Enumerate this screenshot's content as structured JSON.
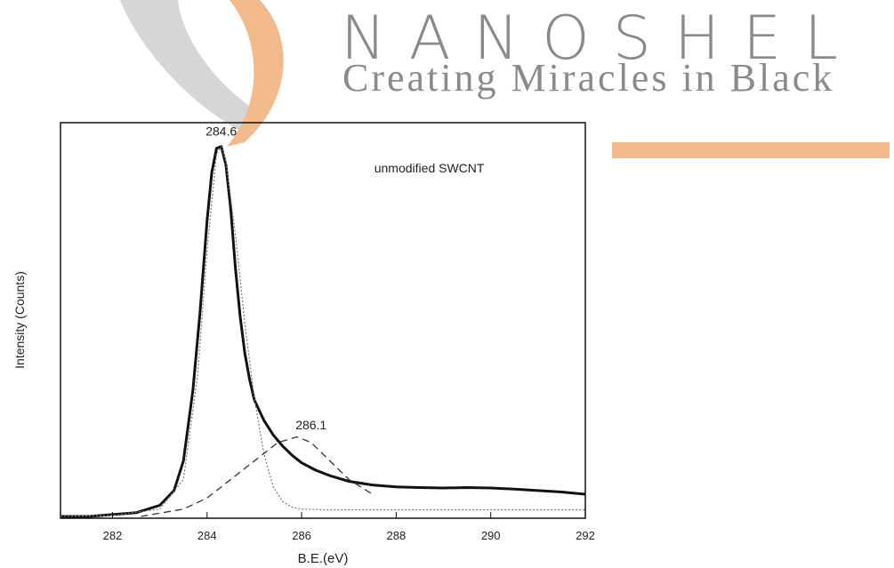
{
  "logo": {
    "name": "NANOSHEL",
    "tagline": "Creating Miracles in Black",
    "colors": {
      "swoosh_orange": "#f2b98a",
      "swoosh_gray": "#d6d6d6",
      "text_gray": "#8a8a8a"
    }
  },
  "chart_data": {
    "type": "line",
    "title": "",
    "xlabel": "B.E.(eV)",
    "ylabel": "Intensity (Counts)",
    "xlim": [
      280.9,
      292
    ],
    "ylim": [
      0,
      1.05
    ],
    "xticks": [
      282,
      284,
      286,
      288,
      290,
      292
    ],
    "yticks": [],
    "grid": false,
    "annotations": [
      {
        "text": "unmodified SWCNT",
        "x": 288.7,
        "y": 0.93
      },
      {
        "text": "284.6",
        "x": 284.3,
        "y": 1.03
      },
      {
        "text": "286.1",
        "x": 286.2,
        "y": 0.235
      }
    ],
    "series": [
      {
        "style": "solid-thick",
        "color": "#111111",
        "x": [
          280.9,
          281.5,
          282.0,
          282.5,
          283.0,
          283.3,
          283.5,
          283.7,
          283.85,
          284.0,
          284.1,
          284.2,
          284.3,
          284.4,
          284.5,
          284.6,
          284.7,
          284.8,
          284.9,
          285.0,
          285.2,
          285.4,
          285.6,
          285.8,
          286.0,
          286.3,
          286.6,
          287.0,
          287.5,
          288.0,
          288.5,
          289.0,
          289.5,
          290.0,
          290.5,
          291.0,
          291.5,
          292.0
        ],
        "y": [
          0.0,
          0.0,
          0.005,
          0.01,
          0.03,
          0.07,
          0.15,
          0.34,
          0.55,
          0.8,
          0.93,
          0.995,
          1.0,
          0.95,
          0.83,
          0.67,
          0.54,
          0.44,
          0.37,
          0.315,
          0.26,
          0.22,
          0.19,
          0.165,
          0.145,
          0.125,
          0.11,
          0.095,
          0.085,
          0.08,
          0.078,
          0.077,
          0.078,
          0.077,
          0.074,
          0.07,
          0.066,
          0.06
        ]
      },
      {
        "style": "dotted",
        "color": "#777777",
        "x": [
          280.9,
          282.0,
          283.0,
          283.5,
          283.8,
          284.0,
          284.2,
          284.3,
          284.4,
          284.6,
          284.8,
          285.0,
          285.2,
          285.4,
          285.6,
          285.8,
          286.0,
          286.5,
          287.0,
          288.0,
          290.0,
          292.0
        ],
        "y": [
          0.0,
          0.003,
          0.02,
          0.1,
          0.38,
          0.72,
          0.98,
          1.0,
          0.96,
          0.76,
          0.52,
          0.32,
          0.17,
          0.08,
          0.04,
          0.025,
          0.02,
          0.018,
          0.018,
          0.018,
          0.018,
          0.018
        ]
      },
      {
        "style": "dashed",
        "color": "#333333",
        "x": [
          282.6,
          283.5,
          284.0,
          284.5,
          285.0,
          285.5,
          285.9,
          286.2,
          286.6,
          287.0,
          287.5
        ],
        "y": [
          0.0,
          0.02,
          0.05,
          0.1,
          0.15,
          0.2,
          0.215,
          0.2,
          0.15,
          0.1,
          0.06
        ]
      }
    ]
  }
}
